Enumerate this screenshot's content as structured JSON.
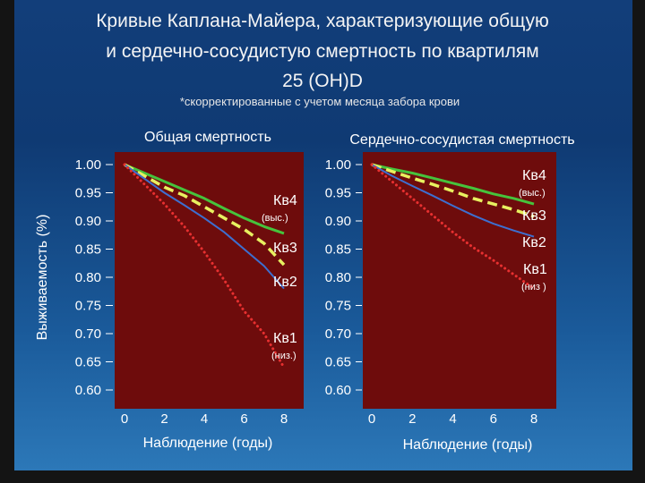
{
  "slide": {
    "title_line1": "Кривые Каплана-Майера, характеризующие общую",
    "title_line2": "и сердечно-сосудистую смертность по квартилям",
    "title_line3": "25 (OH)D",
    "subtitle": "*скорректированные с учетом месяца забора крови"
  },
  "colors": {
    "plot_bg": "#6e0c0c",
    "q1": "#e83030",
    "q2": "#3d6fd0",
    "q3": "#e8f060",
    "q4": "#46c33c",
    "text": "#ffffff"
  },
  "chart_data": [
    {
      "type": "line",
      "title": "Общая смертность",
      "ylabel": "Выживаемость (%)",
      "xlabel": "Наблюдение (годы)",
      "xlim": [
        0,
        8.5
      ],
      "ylim": [
        0.6,
        1.0
      ],
      "yticks": [
        "1.00",
        "0.95",
        "0.90",
        "0.85",
        "0.80",
        "0.75",
        "0.70",
        "0.65",
        "0.60"
      ],
      "xticks": [
        "0",
        "2",
        "4",
        "6",
        "8"
      ],
      "series": [
        {
          "key": "q4",
          "label_main": "Кв4",
          "label_sub": "(выс.)",
          "x": [
            0,
            1,
            2,
            3,
            4,
            5,
            6,
            7,
            8
          ],
          "y": [
            1.0,
            0.985,
            0.97,
            0.955,
            0.94,
            0.922,
            0.905,
            0.89,
            0.878
          ]
        },
        {
          "key": "q3",
          "label_main": "Кв3",
          "label_sub": "",
          "x": [
            0,
            1,
            2,
            3,
            4,
            5,
            6,
            7,
            8
          ],
          "y": [
            1.0,
            0.98,
            0.96,
            0.945,
            0.925,
            0.905,
            0.885,
            0.86,
            0.822
          ]
        },
        {
          "key": "q2",
          "label_main": "Кв2",
          "label_sub": "",
          "x": [
            0,
            1,
            2,
            3,
            4,
            5,
            6,
            7,
            8
          ],
          "y": [
            1.0,
            0.975,
            0.95,
            0.928,
            0.905,
            0.88,
            0.85,
            0.82,
            0.78
          ]
        },
        {
          "key": "q1",
          "label_main": "Кв1",
          "label_sub": "(низ.)",
          "x": [
            0,
            1,
            2,
            3,
            4,
            5,
            6,
            7,
            8
          ],
          "y": [
            1.0,
            0.965,
            0.93,
            0.89,
            0.845,
            0.795,
            0.74,
            0.7,
            0.64
          ]
        }
      ]
    },
    {
      "type": "line",
      "title": "Сердечно-сосудистая смертность",
      "ylabel": "",
      "xlabel": "Наблюдение (годы)",
      "xlim": [
        0,
        8.5
      ],
      "ylim": [
        0.6,
        1.0
      ],
      "yticks": [
        "1.00",
        "0.95",
        "0.90",
        "0.85",
        "0.80",
        "0.75",
        "0.70",
        "0.65",
        "0.60"
      ],
      "xticks": [
        "0",
        "2",
        "4",
        "6",
        "8"
      ],
      "series": [
        {
          "key": "q4",
          "label_main": "Кв4",
          "label_sub": "(выс.)",
          "x": [
            0,
            1,
            2,
            3,
            4,
            5,
            6,
            7,
            8
          ],
          "y": [
            1.0,
            0.992,
            0.985,
            0.976,
            0.967,
            0.958,
            0.948,
            0.94,
            0.93
          ]
        },
        {
          "key": "q3",
          "label_main": "Кв3",
          "label_sub": "",
          "x": [
            0,
            1,
            2,
            3,
            4,
            5,
            6,
            7,
            8
          ],
          "y": [
            1.0,
            0.988,
            0.976,
            0.965,
            0.953,
            0.94,
            0.93,
            0.92,
            0.908
          ]
        },
        {
          "key": "q2",
          "label_main": "Кв2",
          "label_sub": "",
          "x": [
            0,
            1,
            2,
            3,
            4,
            5,
            6,
            7,
            8
          ],
          "y": [
            1.0,
            0.98,
            0.962,
            0.945,
            0.927,
            0.91,
            0.895,
            0.883,
            0.872
          ]
        },
        {
          "key": "q1",
          "label_main": "Кв1",
          "label_sub": "(низ )",
          "x": [
            0,
            1,
            2,
            3,
            4,
            5,
            6,
            7,
            8
          ],
          "y": [
            1.0,
            0.97,
            0.94,
            0.91,
            0.88,
            0.853,
            0.83,
            0.805,
            0.78
          ]
        }
      ]
    }
  ]
}
